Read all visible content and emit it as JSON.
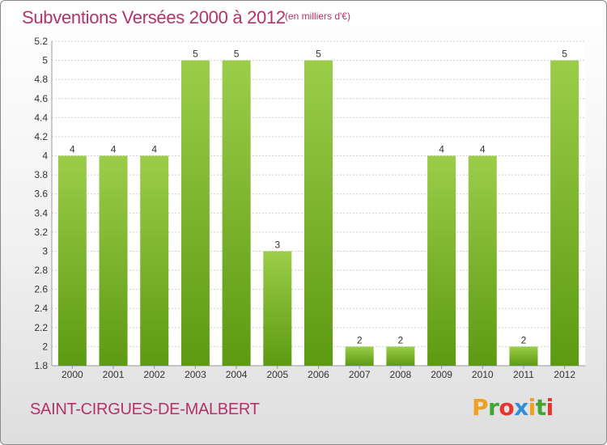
{
  "header": {
    "title": "Subventions Versées 2000 à 2012",
    "unit": "(en milliers d'€)"
  },
  "footer": {
    "commune": "SAINT-CIRGUES-DE-MALBERT",
    "logo_letters": [
      "P",
      "r",
      "o",
      "x",
      "i",
      "t",
      "i"
    ],
    "logo_colors": [
      "#f0a020",
      "#3fa535",
      "#e5352d",
      "#2f8fd8",
      "#f0a020",
      "#3fa535",
      "#e5352d"
    ]
  },
  "colors": {
    "bar_light": "#9ccd4a",
    "bar_dark": "#5c9a12",
    "accent": "#b3336b",
    "grid": "#cfcfcf",
    "axis_text": "#333333"
  },
  "chart_data": {
    "type": "bar",
    "categories": [
      "2000",
      "2001",
      "2002",
      "2003",
      "2004",
      "2005",
      "2006",
      "2007",
      "2008",
      "2009",
      "2010",
      "2011",
      "2012"
    ],
    "values": [
      4,
      4,
      4,
      5,
      5,
      3,
      5,
      2,
      2,
      4,
      4,
      2,
      5
    ],
    "data_labels": [
      "4",
      "4",
      "4",
      "5",
      "5",
      "3",
      "5",
      "2",
      "2",
      "4",
      "4",
      "2",
      "5"
    ],
    "y_ticks": [
      "1.8",
      "2",
      "2.2",
      "2.4",
      "2.6",
      "2.8",
      "3",
      "3.2",
      "3.4",
      "3.6",
      "3.8",
      "4",
      "4.2",
      "4.4",
      "4.6",
      "4.8",
      "5",
      "5.2"
    ],
    "ylim": [
      1.8,
      5.2
    ],
    "grid": true,
    "title": "Subventions Versées 2000 à 2012",
    "xlabel": "",
    "ylabel": ""
  }
}
